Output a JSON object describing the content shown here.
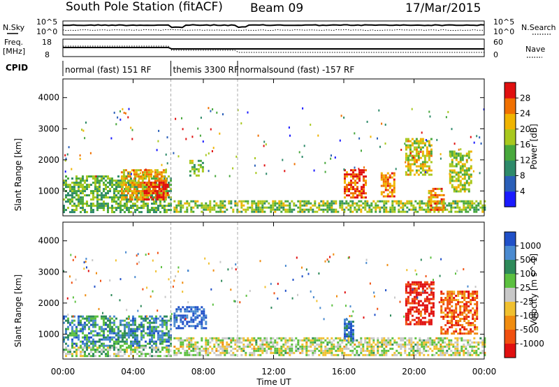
{
  "header": {
    "station": "South Pole Station (fitACF)",
    "beam": "Beam 09",
    "date": "17/Mar/2015"
  },
  "side_labels": {
    "nsky": "N.Sky",
    "nsearch": "N.Search",
    "freq": "Freq.",
    "mhz": "[MHz]",
    "nave": "Nave",
    "cpid": "CPID",
    "nsky_top": "10^5",
    "nsky_bottom": "10^0",
    "nsearch_top": "10^5",
    "nsearch_bottom": "10^0",
    "freq_top": "18",
    "freq_bottom": "8",
    "nave_top": "60",
    "nave_bottom": "0"
  },
  "cpid_segments": [
    {
      "label": "normal (fast) 151 RF",
      "start_h": 0.0,
      "end_h": 6.15
    },
    {
      "label": "themis 3300 RF",
      "start_h": 6.15,
      "end_h": 9.95
    },
    {
      "label": "normalsound (fast) -157 RF",
      "start_h": 9.95,
      "end_h": 24.0
    }
  ],
  "chart_data": [
    {
      "type": "heatmap",
      "title": "Power",
      "ylabel": "Slant Range [km]",
      "xlabel": "",
      "xlim": [
        0,
        24
      ],
      "ylim": [
        200,
        4600
      ],
      "yticks": [
        1000,
        2000,
        3000,
        4000
      ],
      "colorbar": {
        "label": "Power [dB]",
        "ticks": [
          4,
          8,
          12,
          16,
          20,
          24,
          28
        ],
        "range": [
          0,
          32
        ],
        "colors": [
          "#1a1aff",
          "#2a5fb8",
          "#2e8a6a",
          "#48a83c",
          "#a8c81e",
          "#f0b400",
          "#f07000",
          "#e01010"
        ]
      },
      "echo_regions": [
        {
          "t0": 0.0,
          "t1": 6.2,
          "r0": 300,
          "r1": 1500,
          "level": 0.45
        },
        {
          "t0": 3.3,
          "t1": 5.9,
          "r0": 700,
          "r1": 1700,
          "level": 0.7
        },
        {
          "t0": 4.6,
          "t1": 6.0,
          "r0": 700,
          "r1": 1300,
          "level": 0.95
        },
        {
          "t0": 6.3,
          "t1": 24.0,
          "r0": 300,
          "r1": 700,
          "level": 0.5
        },
        {
          "t0": 7.2,
          "t1": 8.0,
          "r0": 1500,
          "r1": 2000,
          "level": 0.5
        },
        {
          "t0": 16.0,
          "t1": 17.3,
          "r0": 800,
          "r1": 1700,
          "level": 0.85
        },
        {
          "t0": 18.1,
          "t1": 18.9,
          "r0": 800,
          "r1": 1600,
          "level": 0.8
        },
        {
          "t0": 19.5,
          "t1": 21.0,
          "r0": 1500,
          "r1": 2700,
          "level": 0.6
        },
        {
          "t0": 20.8,
          "t1": 21.7,
          "r0": 400,
          "r1": 1100,
          "level": 0.75
        },
        {
          "t0": 22.0,
          "t1": 23.3,
          "r0": 1000,
          "r1": 2300,
          "level": 0.55
        }
      ]
    },
    {
      "type": "heatmap",
      "title": "Velocity",
      "ylabel": "Slant Range [km]",
      "xlabel": "Time UT",
      "xlim": [
        0,
        24
      ],
      "ylim": [
        200,
        4600
      ],
      "yticks": [
        1000,
        2000,
        3000,
        4000
      ],
      "xticks": [
        "00:00",
        "04:00",
        "08:00",
        "12:00",
        "16:00",
        "20:00",
        "00:00"
      ],
      "colorbar": {
        "label": "Velocity [m s^-1]",
        "ticks": [
          "1000",
          "500",
          "100",
          "25",
          "-25",
          "-100",
          "-500",
          "-1000"
        ],
        "colors": [
          "#2050c8",
          "#4a8ad0",
          "#2e8a5a",
          "#5cc040",
          "#c8c8c8",
          "#f0c030",
          "#f08c10",
          "#f05010",
          "#e01010"
        ]
      },
      "echo_regions": [
        {
          "t0": 0.0,
          "t1": 6.2,
          "r0": 600,
          "r1": 1600,
          "level": 0.25
        },
        {
          "t0": 0.0,
          "t1": 6.2,
          "r0": 300,
          "r1": 600,
          "level": 0.45
        },
        {
          "t0": 6.3,
          "t1": 8.2,
          "r0": 1200,
          "r1": 1900,
          "level": 0.05
        },
        {
          "t0": 6.3,
          "t1": 24.0,
          "r0": 300,
          "r1": 900,
          "level": 0.5
        },
        {
          "t0": 16.0,
          "t1": 16.5,
          "r0": 800,
          "r1": 1500,
          "level": 0.15
        },
        {
          "t0": 19.5,
          "t1": 21.1,
          "r0": 1300,
          "r1": 2700,
          "level": 0.95
        },
        {
          "t0": 21.5,
          "t1": 23.6,
          "r0": 1000,
          "r1": 2400,
          "level": 0.8
        }
      ]
    }
  ]
}
